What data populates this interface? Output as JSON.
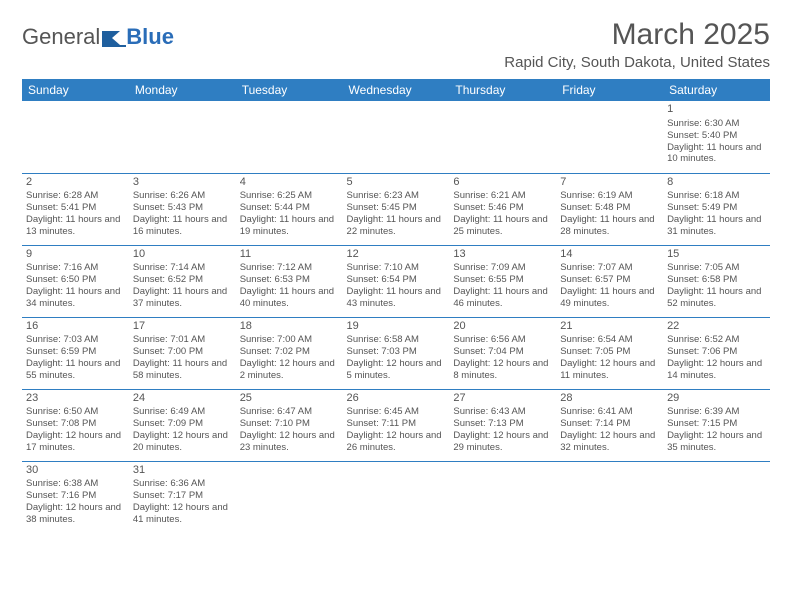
{
  "logo": {
    "part1": "General",
    "part2": "Blue"
  },
  "title": "March 2025",
  "location": "Rapid City, South Dakota, United States",
  "colors": {
    "header_bg": "#2f7ec2",
    "header_text": "#ffffff",
    "text": "#555555",
    "border": "#2f7ec2",
    "page_bg": "#ffffff"
  },
  "day_headers": [
    "Sunday",
    "Monday",
    "Tuesday",
    "Wednesday",
    "Thursday",
    "Friday",
    "Saturday"
  ],
  "weeks": [
    [
      null,
      null,
      null,
      null,
      null,
      null,
      {
        "n": "1",
        "sr": "Sunrise: 6:30 AM",
        "ss": "Sunset: 5:40 PM",
        "dl": "Daylight: 11 hours and 10 minutes."
      }
    ],
    [
      {
        "n": "2",
        "sr": "Sunrise: 6:28 AM",
        "ss": "Sunset: 5:41 PM",
        "dl": "Daylight: 11 hours and 13 minutes."
      },
      {
        "n": "3",
        "sr": "Sunrise: 6:26 AM",
        "ss": "Sunset: 5:43 PM",
        "dl": "Daylight: 11 hours and 16 minutes."
      },
      {
        "n": "4",
        "sr": "Sunrise: 6:25 AM",
        "ss": "Sunset: 5:44 PM",
        "dl": "Daylight: 11 hours and 19 minutes."
      },
      {
        "n": "5",
        "sr": "Sunrise: 6:23 AM",
        "ss": "Sunset: 5:45 PM",
        "dl": "Daylight: 11 hours and 22 minutes."
      },
      {
        "n": "6",
        "sr": "Sunrise: 6:21 AM",
        "ss": "Sunset: 5:46 PM",
        "dl": "Daylight: 11 hours and 25 minutes."
      },
      {
        "n": "7",
        "sr": "Sunrise: 6:19 AM",
        "ss": "Sunset: 5:48 PM",
        "dl": "Daylight: 11 hours and 28 minutes."
      },
      {
        "n": "8",
        "sr": "Sunrise: 6:18 AM",
        "ss": "Sunset: 5:49 PM",
        "dl": "Daylight: 11 hours and 31 minutes."
      }
    ],
    [
      {
        "n": "9",
        "sr": "Sunrise: 7:16 AM",
        "ss": "Sunset: 6:50 PM",
        "dl": "Daylight: 11 hours and 34 minutes."
      },
      {
        "n": "10",
        "sr": "Sunrise: 7:14 AM",
        "ss": "Sunset: 6:52 PM",
        "dl": "Daylight: 11 hours and 37 minutes."
      },
      {
        "n": "11",
        "sr": "Sunrise: 7:12 AM",
        "ss": "Sunset: 6:53 PM",
        "dl": "Daylight: 11 hours and 40 minutes."
      },
      {
        "n": "12",
        "sr": "Sunrise: 7:10 AM",
        "ss": "Sunset: 6:54 PM",
        "dl": "Daylight: 11 hours and 43 minutes."
      },
      {
        "n": "13",
        "sr": "Sunrise: 7:09 AM",
        "ss": "Sunset: 6:55 PM",
        "dl": "Daylight: 11 hours and 46 minutes."
      },
      {
        "n": "14",
        "sr": "Sunrise: 7:07 AM",
        "ss": "Sunset: 6:57 PM",
        "dl": "Daylight: 11 hours and 49 minutes."
      },
      {
        "n": "15",
        "sr": "Sunrise: 7:05 AM",
        "ss": "Sunset: 6:58 PM",
        "dl": "Daylight: 11 hours and 52 minutes."
      }
    ],
    [
      {
        "n": "16",
        "sr": "Sunrise: 7:03 AM",
        "ss": "Sunset: 6:59 PM",
        "dl": "Daylight: 11 hours and 55 minutes."
      },
      {
        "n": "17",
        "sr": "Sunrise: 7:01 AM",
        "ss": "Sunset: 7:00 PM",
        "dl": "Daylight: 11 hours and 58 minutes."
      },
      {
        "n": "18",
        "sr": "Sunrise: 7:00 AM",
        "ss": "Sunset: 7:02 PM",
        "dl": "Daylight: 12 hours and 2 minutes."
      },
      {
        "n": "19",
        "sr": "Sunrise: 6:58 AM",
        "ss": "Sunset: 7:03 PM",
        "dl": "Daylight: 12 hours and 5 minutes."
      },
      {
        "n": "20",
        "sr": "Sunrise: 6:56 AM",
        "ss": "Sunset: 7:04 PM",
        "dl": "Daylight: 12 hours and 8 minutes."
      },
      {
        "n": "21",
        "sr": "Sunrise: 6:54 AM",
        "ss": "Sunset: 7:05 PM",
        "dl": "Daylight: 12 hours and 11 minutes."
      },
      {
        "n": "22",
        "sr": "Sunrise: 6:52 AM",
        "ss": "Sunset: 7:06 PM",
        "dl": "Daylight: 12 hours and 14 minutes."
      }
    ],
    [
      {
        "n": "23",
        "sr": "Sunrise: 6:50 AM",
        "ss": "Sunset: 7:08 PM",
        "dl": "Daylight: 12 hours and 17 minutes."
      },
      {
        "n": "24",
        "sr": "Sunrise: 6:49 AM",
        "ss": "Sunset: 7:09 PM",
        "dl": "Daylight: 12 hours and 20 minutes."
      },
      {
        "n": "25",
        "sr": "Sunrise: 6:47 AM",
        "ss": "Sunset: 7:10 PM",
        "dl": "Daylight: 12 hours and 23 minutes."
      },
      {
        "n": "26",
        "sr": "Sunrise: 6:45 AM",
        "ss": "Sunset: 7:11 PM",
        "dl": "Daylight: 12 hours and 26 minutes."
      },
      {
        "n": "27",
        "sr": "Sunrise: 6:43 AM",
        "ss": "Sunset: 7:13 PM",
        "dl": "Daylight: 12 hours and 29 minutes."
      },
      {
        "n": "28",
        "sr": "Sunrise: 6:41 AM",
        "ss": "Sunset: 7:14 PM",
        "dl": "Daylight: 12 hours and 32 minutes."
      },
      {
        "n": "29",
        "sr": "Sunrise: 6:39 AM",
        "ss": "Sunset: 7:15 PM",
        "dl": "Daylight: 12 hours and 35 minutes."
      }
    ],
    [
      {
        "n": "30",
        "sr": "Sunrise: 6:38 AM",
        "ss": "Sunset: 7:16 PM",
        "dl": "Daylight: 12 hours and 38 minutes."
      },
      {
        "n": "31",
        "sr": "Sunrise: 6:36 AM",
        "ss": "Sunset: 7:17 PM",
        "dl": "Daylight: 12 hours and 41 minutes."
      },
      null,
      null,
      null,
      null,
      null
    ]
  ]
}
